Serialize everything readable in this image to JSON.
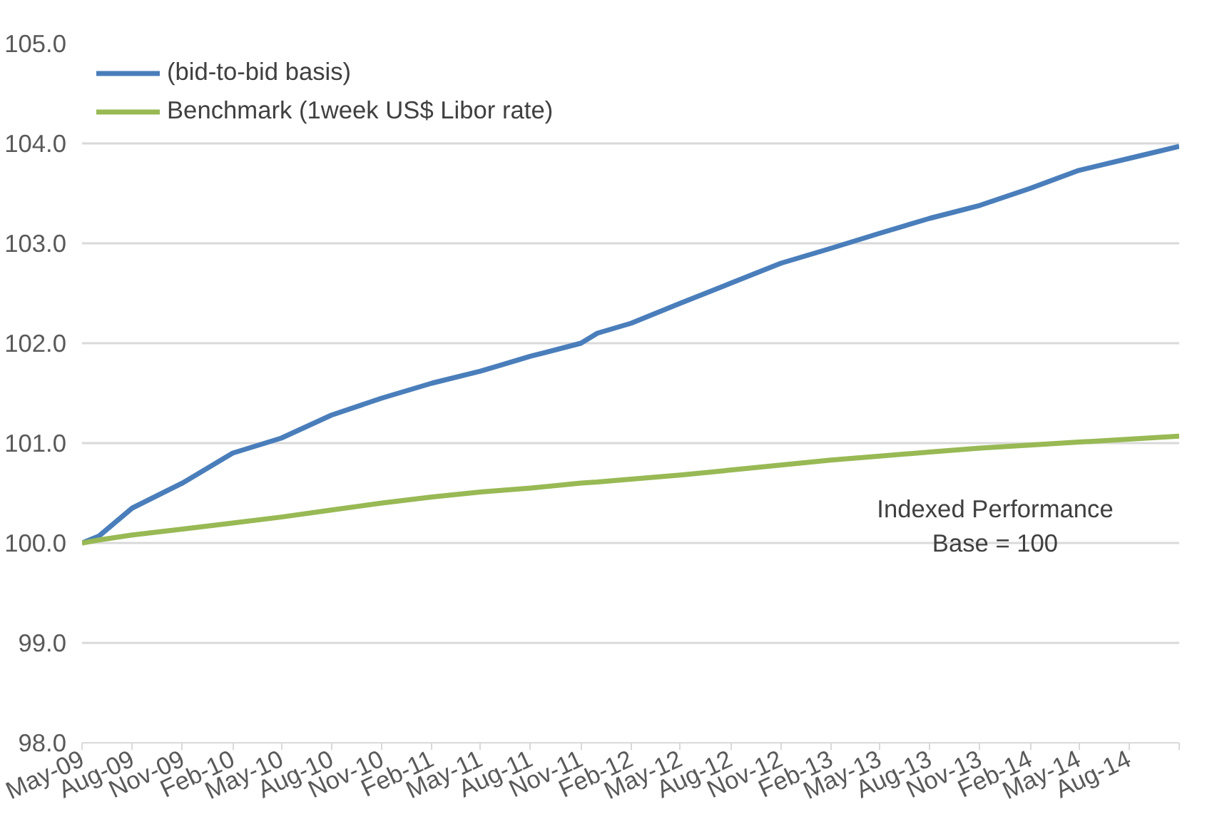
{
  "chart_data": {
    "type": "line",
    "x": [
      "2009-05",
      "2009-06",
      "2009-08",
      "2009-11",
      "2010-02",
      "2010-05",
      "2010-08",
      "2010-11",
      "2011-02",
      "2011-05",
      "2011-08",
      "2011-11",
      "2011-12",
      "2012-02",
      "2012-05",
      "2012-08",
      "2012-11",
      "2013-02",
      "2013-05",
      "2013-08",
      "2013-11",
      "2014-02",
      "2014-05",
      "2014-08",
      "2014-11"
    ],
    "series": [
      {
        "name": "(bid-to-bid basis)",
        "color": "#4a7ebb",
        "values": [
          100.0,
          100.07,
          100.35,
          100.6,
          100.9,
          101.05,
          101.28,
          101.45,
          101.6,
          101.72,
          101.87,
          102.0,
          102.1,
          102.2,
          102.4,
          102.6,
          102.8,
          102.95,
          103.1,
          103.25,
          103.38,
          103.55,
          103.73,
          103.85,
          103.97
        ]
      },
      {
        "name": "Benchmark (1week US$ Libor rate)",
        "color": "#98b954",
        "values": [
          100.0,
          100.03,
          100.08,
          100.14,
          100.2,
          100.26,
          100.33,
          100.4,
          100.46,
          100.51,
          100.55,
          100.6,
          100.61,
          100.64,
          100.68,
          100.73,
          100.78,
          100.83,
          100.87,
          100.91,
          100.95,
          100.98,
          101.01,
          101.04,
          101.07
        ]
      }
    ],
    "ylim": [
      98.0,
      105.0
    ],
    "yticks": [
      {
        "value": 98,
        "label": "98.0"
      },
      {
        "value": 99,
        "label": "99.0"
      },
      {
        "value": 100,
        "label": "100.0"
      },
      {
        "value": 101,
        "label": "101.0"
      },
      {
        "value": 102,
        "label": "102.0"
      },
      {
        "value": 103,
        "label": "103.0"
      },
      {
        "value": 104,
        "label": "104.0"
      },
      {
        "value": 105,
        "label": "105.0"
      }
    ],
    "xlim": [
      "2009-05",
      "2014-11"
    ],
    "xticks": [
      {
        "value": "2009-05",
        "label": "May-09"
      },
      {
        "value": "2009-08",
        "label": "Aug-09"
      },
      {
        "value": "2009-11",
        "label": "Nov-09"
      },
      {
        "value": "2010-02",
        "label": "Feb-10"
      },
      {
        "value": "2010-05",
        "label": "May-10"
      },
      {
        "value": "2010-08",
        "label": "Aug-10"
      },
      {
        "value": "2010-11",
        "label": "Nov-10"
      },
      {
        "value": "2011-02",
        "label": "Feb-11"
      },
      {
        "value": "2011-05",
        "label": "May-11"
      },
      {
        "value": "2011-08",
        "label": "Aug-11"
      },
      {
        "value": "2011-11",
        "label": "Nov-11"
      },
      {
        "value": "2012-02",
        "label": "Feb-12"
      },
      {
        "value": "2012-05",
        "label": "May-12"
      },
      {
        "value": "2012-08",
        "label": "Aug-12"
      },
      {
        "value": "2012-11",
        "label": "Nov-12"
      },
      {
        "value": "2013-02",
        "label": "Feb-13"
      },
      {
        "value": "2013-05",
        "label": "May-13"
      },
      {
        "value": "2013-08",
        "label": "Aug-13"
      },
      {
        "value": "2013-11",
        "label": "Nov-13"
      },
      {
        "value": "2014-02",
        "label": "Feb-14"
      },
      {
        "value": "2014-05",
        "label": "May-14"
      },
      {
        "value": "2014-08",
        "label": "Aug-14"
      },
      {
        "value": "2014-11",
        "label": null
      }
    ],
    "grid": "y",
    "legend": "top left",
    "marker": "none",
    "line_style": "solid",
    "annotations": [
      "Indexed Performance\nBase = 100"
    ]
  }
}
